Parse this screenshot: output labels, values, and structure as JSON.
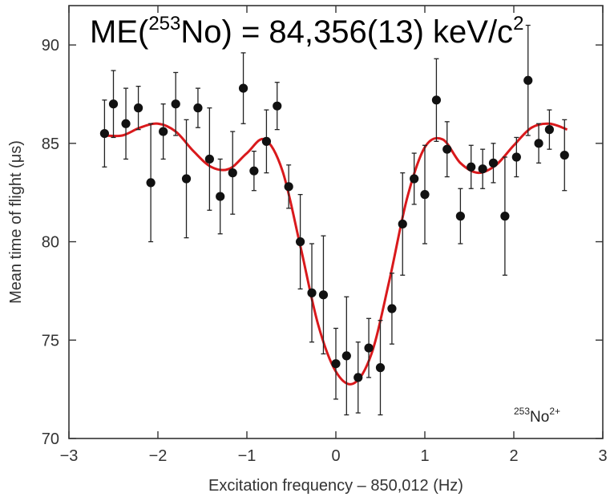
{
  "chart_data": {
    "type": "scatter",
    "title_parts": {
      "prefix": "ME(",
      "mass_number": "253",
      "element": "No",
      "suffix": ") = 84,356(13) keV/c",
      "exponent": "2"
    },
    "annotation": {
      "mass_number": "253",
      "element": "No",
      "charge": "2+"
    },
    "xlabel": "Excitation frequency – 850,012 (Hz)",
    "ylabel": "Mean time of flight (μs)",
    "xlim": [
      -3,
      3
    ],
    "ylim": [
      70,
      92
    ],
    "x_ticks": [
      -3,
      -2,
      -1,
      0,
      1,
      2,
      3
    ],
    "x_tick_labels": [
      "−3",
      "−2",
      "−1",
      "0",
      "1",
      "2",
      "3"
    ],
    "y_ticks": [
      70,
      75,
      80,
      85,
      90
    ],
    "y_tick_labels": [
      "70",
      "75",
      "80",
      "85",
      "90"
    ],
    "grid": false,
    "series": [
      {
        "type": "scatter_errorbar",
        "color": "#111111",
        "points": [
          {
            "x": -2.6,
            "y": 85.5,
            "err": 1.7
          },
          {
            "x": -2.5,
            "y": 87.0,
            "err": 1.7
          },
          {
            "x": -2.36,
            "y": 86.0,
            "err": 1.8
          },
          {
            "x": -2.22,
            "y": 86.8,
            "err": 1.1
          },
          {
            "x": -2.08,
            "y": 83.0,
            "err": 3.0
          },
          {
            "x": -1.94,
            "y": 85.6,
            "err": 1.4
          },
          {
            "x": -1.8,
            "y": 87.0,
            "err": 1.6
          },
          {
            "x": -1.68,
            "y": 83.2,
            "err": 3.0
          },
          {
            "x": -1.55,
            "y": 86.8,
            "err": 1.0
          },
          {
            "x": -1.42,
            "y": 84.2,
            "err": 2.6
          },
          {
            "x": -1.3,
            "y": 82.3,
            "err": 1.9
          },
          {
            "x": -1.16,
            "y": 83.5,
            "err": 2.1
          },
          {
            "x": -1.04,
            "y": 87.8,
            "err": 1.8
          },
          {
            "x": -0.92,
            "y": 83.6,
            "err": 1.0
          },
          {
            "x": -0.78,
            "y": 85.1,
            "err": 1.6
          },
          {
            "x": -0.66,
            "y": 86.9,
            "err": 1.2
          },
          {
            "x": -0.53,
            "y": 82.8,
            "err": 1.1
          },
          {
            "x": -0.4,
            "y": 80.0,
            "err": 2.4
          },
          {
            "x": -0.27,
            "y": 77.4,
            "err": 2.5
          },
          {
            "x": -0.14,
            "y": 77.3,
            "err": 3.0
          },
          {
            "x": 0.0,
            "y": 73.8,
            "err": 1.8
          },
          {
            "x": 0.12,
            "y": 74.2,
            "err": 3.0
          },
          {
            "x": 0.25,
            "y": 73.1,
            "err": 1.8
          },
          {
            "x": 0.37,
            "y": 74.6,
            "err": 1.5
          },
          {
            "x": 0.5,
            "y": 73.6,
            "err": 2.4
          },
          {
            "x": 0.63,
            "y": 76.6,
            "err": 1.8
          },
          {
            "x": 0.75,
            "y": 80.9,
            "err": 2.6
          },
          {
            "x": 0.88,
            "y": 83.2,
            "err": 1.3
          },
          {
            "x": 1.0,
            "y": 82.4,
            "err": 2.5
          },
          {
            "x": 1.13,
            "y": 87.2,
            "err": 2.1
          },
          {
            "x": 1.25,
            "y": 84.7,
            "err": 1.4
          },
          {
            "x": 1.4,
            "y": 81.3,
            "err": 1.4
          },
          {
            "x": 1.52,
            "y": 83.8,
            "err": 1.1
          },
          {
            "x": 1.65,
            "y": 83.7,
            "err": 1.0
          },
          {
            "x": 1.77,
            "y": 84.0,
            "err": 1.0
          },
          {
            "x": 1.9,
            "y": 81.3,
            "err": 3.0
          },
          {
            "x": 2.03,
            "y": 84.3,
            "err": 1.0
          },
          {
            "x": 2.16,
            "y": 88.2,
            "err": 2.8
          },
          {
            "x": 2.28,
            "y": 85.0,
            "err": 1.0
          },
          {
            "x": 2.4,
            "y": 85.7,
            "err": 1.0
          },
          {
            "x": 2.57,
            "y": 84.4,
            "err": 1.8
          }
        ]
      },
      {
        "type": "fit_line",
        "color": "#d9191c",
        "x": [
          -2.6,
          -2.4,
          -2.2,
          -2.0,
          -1.8,
          -1.6,
          -1.4,
          -1.2,
          -1.0,
          -0.8,
          -0.6,
          -0.4,
          -0.2,
          0.0,
          0.2,
          0.4,
          0.6,
          0.8,
          1.0,
          1.2,
          1.4,
          1.6,
          1.8,
          2.0,
          2.2,
          2.4,
          2.6
        ],
        "y": [
          85.4,
          85.4,
          85.8,
          86.0,
          85.6,
          84.6,
          83.8,
          83.7,
          84.5,
          85.2,
          83.6,
          79.8,
          75.8,
          73.4,
          72.8,
          74.3,
          78.0,
          82.2,
          84.8,
          85.2,
          84.0,
          83.5,
          83.9,
          84.9,
          85.8,
          86.0,
          85.7
        ]
      }
    ]
  }
}
